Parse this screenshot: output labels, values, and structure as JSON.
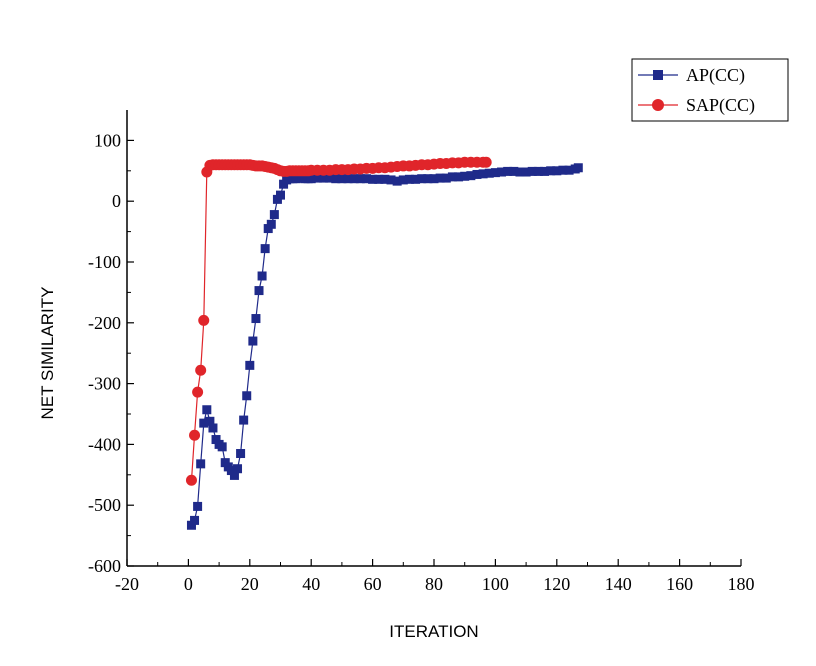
{
  "chart_data": {
    "type": "line",
    "title": "",
    "xlabel": "ITERATION",
    "ylabel": "NET SIMILARITY",
    "xlim": [
      -20,
      180
    ],
    "ylim": [
      -600,
      150
    ],
    "xticks": [
      -20,
      0,
      20,
      40,
      60,
      80,
      100,
      120,
      140,
      160,
      180
    ],
    "yticks": [
      -600,
      -500,
      -400,
      -300,
      -200,
      -100,
      0,
      100
    ],
    "grid": false,
    "legend_position": "top-right",
    "series": [
      {
        "name": "AP(CC)",
        "color": "#1f2a8a",
        "marker": "square",
        "x": [
          1,
          2,
          3,
          4,
          5,
          6,
          7,
          8,
          9,
          10,
          11,
          12,
          13,
          14,
          15,
          16,
          17,
          18,
          19,
          20,
          21,
          22,
          23,
          24,
          25,
          26,
          27,
          28,
          29,
          30,
          31,
          32,
          33,
          34,
          35,
          36,
          37,
          38,
          39,
          40,
          42,
          44,
          46,
          48,
          50,
          52,
          54,
          56,
          58,
          60,
          62,
          64,
          66,
          68,
          70,
          72,
          74,
          76,
          78,
          80,
          82,
          84,
          86,
          88,
          90,
          92,
          94,
          96,
          98,
          100,
          102,
          104,
          106,
          108,
          110,
          112,
          114,
          116,
          118,
          120,
          122,
          124,
          126,
          127
        ],
        "y": [
          -533,
          -525,
          -502,
          -432,
          -365,
          -343,
          -362,
          -373,
          -392,
          -400,
          -404,
          -430,
          -437,
          -443,
          -451,
          -440,
          -415,
          -360,
          -320,
          -270,
          -230,
          -193,
          -147,
          -123,
          -78,
          -45,
          -38,
          -22,
          3,
          10,
          28,
          35,
          37,
          37,
          37,
          38,
          38,
          37,
          37,
          37,
          38,
          38,
          38,
          37,
          37,
          37,
          37,
          37,
          37,
          36,
          36,
          36,
          35,
          33,
          35,
          36,
          36,
          37,
          37,
          37,
          38,
          38,
          40,
          40,
          41,
          42,
          44,
          45,
          46,
          47,
          48,
          49,
          49,
          48,
          48,
          49,
          49,
          49,
          50,
          50,
          51,
          51,
          53,
          55
        ]
      },
      {
        "name": "SAP(CC)",
        "color": "#e0252a",
        "marker": "circle",
        "x": [
          1,
          2,
          3,
          4,
          5,
          6,
          7,
          8,
          9,
          10,
          11,
          12,
          13,
          14,
          15,
          16,
          17,
          18,
          19,
          20,
          21,
          22,
          23,
          24,
          25,
          26,
          27,
          28,
          29,
          30,
          31,
          32,
          33,
          34,
          35,
          36,
          37,
          38,
          39,
          40,
          42,
          44,
          46,
          48,
          50,
          52,
          54,
          56,
          58,
          60,
          62,
          64,
          66,
          68,
          70,
          72,
          74,
          76,
          78,
          80,
          82,
          84,
          86,
          88,
          90,
          92,
          94,
          96,
          97
        ],
        "y": [
          -459,
          -385,
          -314,
          -278,
          -196,
          48,
          59,
          60,
          60,
          60,
          60,
          60,
          60,
          60,
          60,
          60,
          60,
          60,
          60,
          60,
          59,
          58,
          58,
          58,
          57,
          56,
          55,
          54,
          52,
          50,
          49,
          49,
          50,
          50,
          50,
          50,
          50,
          50,
          50,
          51,
          51,
          51,
          51,
          52,
          52,
          52,
          53,
          53,
          54,
          54,
          55,
          55,
          56,
          57,
          58,
          58,
          59,
          60,
          60,
          61,
          62,
          62,
          63,
          63,
          64,
          64,
          64,
          64,
          64
        ]
      }
    ]
  }
}
